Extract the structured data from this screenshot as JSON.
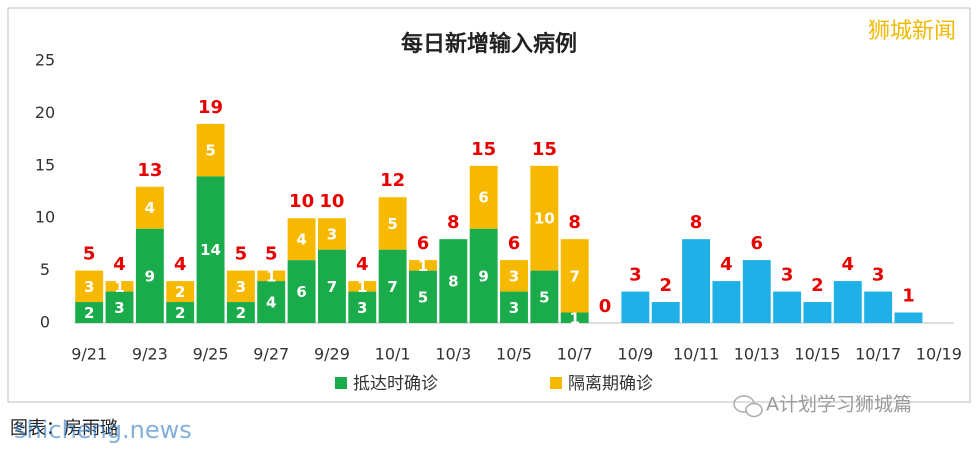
{
  "chart_data": {
    "type": "stacked-bar",
    "title": "每日新增输入病例",
    "categories": [
      "9/21",
      null,
      "9/23",
      null,
      "9/25",
      null,
      "9/27",
      null,
      "9/29",
      null,
      "10/1",
      null,
      "10/3",
      null,
      "10/5",
      null,
      "10/7",
      null,
      "10/9",
      null,
      "10/11",
      null,
      "10/13",
      null,
      "10/15",
      null,
      "10/17",
      null,
      "10/19"
    ],
    "series": [
      {
        "name": "抵达时确诊",
        "color": "#1aab4a",
        "values": [
          2,
          3,
          9,
          2,
          14,
          2,
          4,
          6,
          7,
          3,
          7,
          5,
          8,
          9,
          3,
          5,
          1,
          null,
          null,
          null,
          null,
          null,
          null,
          null,
          null,
          null,
          null,
          null,
          null
        ]
      },
      {
        "name": "隔离期确诊",
        "color": "#f7b900",
        "values": [
          3,
          1,
          4,
          2,
          5,
          3,
          1,
          4,
          3,
          1,
          5,
          1,
          null,
          6,
          3,
          10,
          7,
          null,
          null,
          null,
          null,
          null,
          null,
          null,
          null,
          null,
          null,
          null,
          null
        ]
      },
      {
        "color": "#1fb0e8",
        "values": [
          null,
          null,
          null,
          null,
          null,
          null,
          null,
          null,
          null,
          null,
          null,
          null,
          null,
          null,
          null,
          null,
          null,
          null,
          3,
          2,
          8,
          4,
          6,
          3,
          2,
          4,
          3,
          1,
          null
        ]
      }
    ],
    "totals": [
      5,
      4,
      13,
      4,
      19,
      5,
      5,
      10,
      10,
      4,
      12,
      6,
      8,
      15,
      6,
      15,
      8,
      0,
      3,
      2,
      8,
      4,
      6,
      3,
      2,
      4,
      3,
      1,
      null
    ],
    "totals_color": "#e60000",
    "ylim": [
      0,
      25
    ],
    "yticks": [
      0,
      5,
      10,
      15,
      20,
      25
    ],
    "grid": false,
    "legend": "bottom"
  },
  "watermark": "狮城新闻",
  "credit": "图表：房雨璐",
  "site": "shicheng.news",
  "account": "A计划学习狮城篇"
}
